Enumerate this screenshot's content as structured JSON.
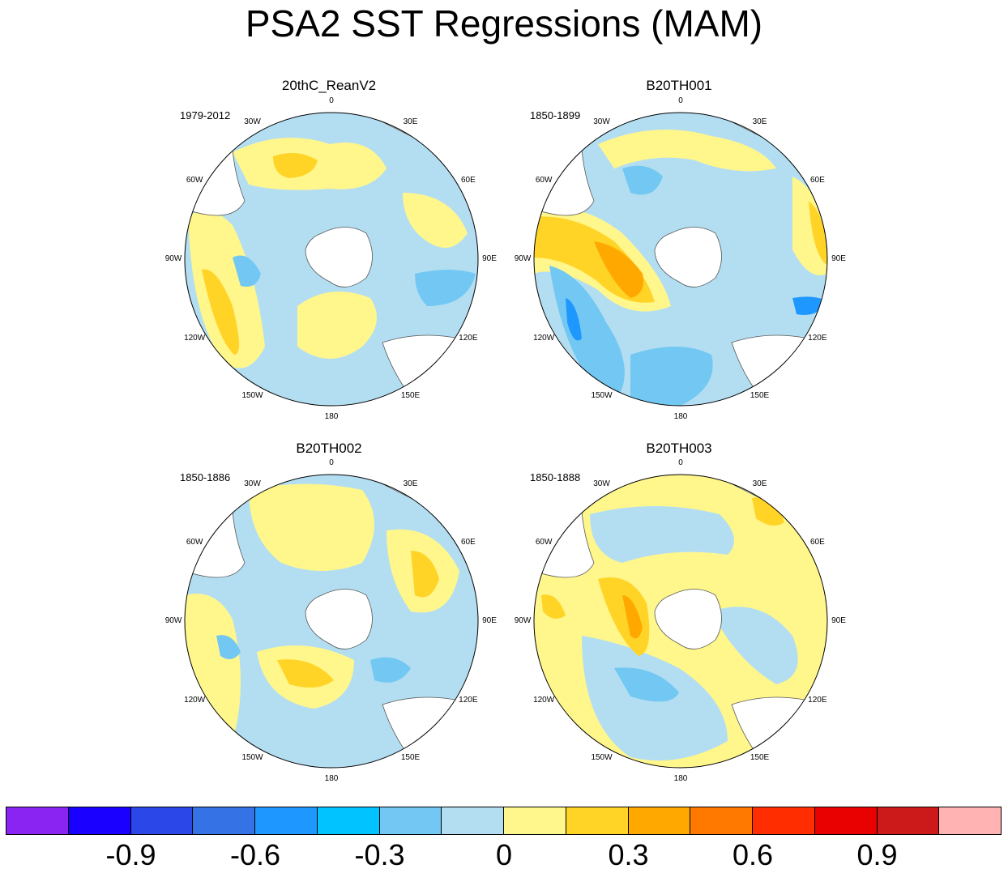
{
  "figure": {
    "title": "PSA2 SST Regressions (MAM)",
    "panels": [
      {
        "title": "20thC_ReanV2",
        "period": "1979-2012"
      },
      {
        "title": "B20TH001",
        "period": "1850-1899"
      },
      {
        "title": "B20TH002",
        "period": "1850-1886"
      },
      {
        "title": "B20TH003",
        "period": "1850-1888"
      }
    ],
    "longitude_labels": [
      "0",
      "30E",
      "60E",
      "90E",
      "120E",
      "150E",
      "180",
      "150W",
      "120W",
      "90W",
      "60W",
      "30W"
    ]
  },
  "colorbar": {
    "colors": [
      "#8a24f2",
      "#1a00ff",
      "#2b47e8",
      "#3472e6",
      "#1e98ff",
      "#00c3ff",
      "#72c8f2",
      "#b3def2",
      "#fff68c",
      "#ffd426",
      "#ffa800",
      "#ff7800",
      "#ff2d00",
      "#e90000",
      "#cc1a1a",
      "#ffb3b3"
    ],
    "tick_labels": [
      "-0.9",
      "-0.6",
      "-0.3",
      "0",
      "0.3",
      "0.6",
      "0.9"
    ]
  }
}
